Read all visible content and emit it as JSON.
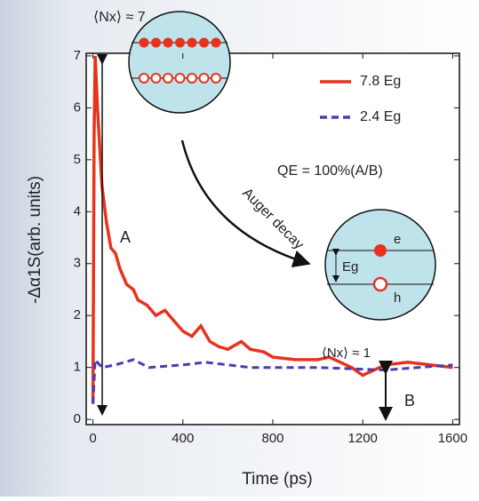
{
  "chart_data": {
    "type": "line",
    "ylabel": "-Δα1S(arb. units)",
    "xlabel": "Time (ps)",
    "xlim": [
      -30,
      1630
    ],
    "ylim": [
      -0.1,
      7.05
    ],
    "xticks": [
      0,
      400,
      800,
      1200,
      1600
    ],
    "yticks": [
      0,
      1,
      2,
      3,
      4,
      5,
      6,
      7
    ],
    "legend": "upper right",
    "series": [
      {
        "name": "7.8 Eg",
        "color": "#e8321e",
        "dash": false,
        "x": [
          0,
          5,
          10,
          20,
          40,
          60,
          80,
          100,
          120,
          150,
          180,
          200,
          240,
          280,
          320,
          360,
          400,
          440,
          480,
          520,
          560,
          600,
          660,
          700,
          760,
          800,
          900,
          1000,
          1050,
          1100,
          1150,
          1200,
          1250,
          1300,
          1400,
          1500,
          1600
        ],
        "values": [
          0.3,
          5.5,
          7.0,
          6.0,
          4.5,
          3.8,
          3.3,
          3.2,
          2.9,
          2.6,
          2.5,
          2.3,
          2.2,
          2.0,
          2.1,
          1.9,
          1.7,
          1.6,
          1.8,
          1.5,
          1.4,
          1.35,
          1.5,
          1.35,
          1.3,
          1.2,
          1.15,
          1.15,
          1.2,
          1.1,
          1.0,
          0.85,
          0.95,
          1.05,
          1.1,
          1.05,
          1.0
        ]
      },
      {
        "name": "2.4 Eg",
        "color": "#4a3db0",
        "dash": true,
        "x": [
          0,
          10,
          40,
          100,
          180,
          250,
          400,
          500,
          700,
          1000,
          1300,
          1600
        ],
        "values": [
          0.3,
          1.15,
          1.0,
          1.05,
          1.15,
          1.0,
          1.05,
          1.1,
          1.0,
          1.0,
          0.95,
          1.05
        ]
      }
    ],
    "annotations": {
      "n7": "⟨Nx⟩ ≈ 7",
      "a": "A",
      "auger": "Auger decay",
      "qe": "QE = 100%(A/B)",
      "n1": "⟨Nx⟩ ≈ 1",
      "b": "B",
      "e": "e",
      "h": "h",
      "eg": "Eg"
    }
  }
}
